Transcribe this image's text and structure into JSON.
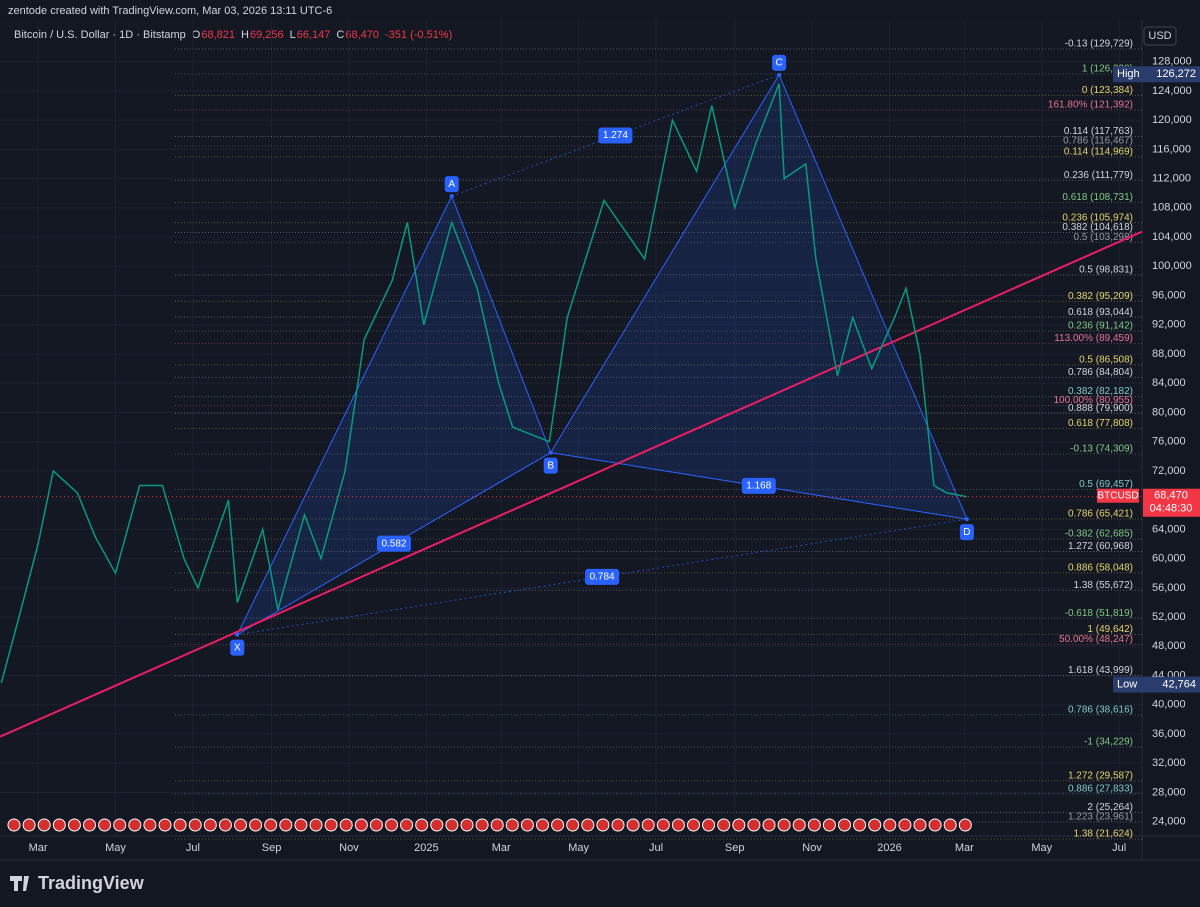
{
  "header": {
    "credit": "zentode created with TradingView.com, Mar 03, 2026 13:11 UTC-6",
    "symbol": "Bitcoin / U.S. Dollar · 1D · Bitstamp",
    "ohlc": [
      {
        "key": "O",
        "text": "68,821"
      },
      {
        "key": "H",
        "text": "69,256"
      },
      {
        "key": "L",
        "text": "66,147"
      },
      {
        "key": "C",
        "text": "68,470"
      }
    ],
    "change": "-351 (-0.51%)"
  },
  "chart_data": {
    "type": "line",
    "x": [
      "2024-02-01",
      "2024-02-15",
      "2024-03-01",
      "2024-03-13",
      "2024-04-01",
      "2024-04-15",
      "2024-05-01",
      "2024-05-20",
      "2024-06-07",
      "2024-06-24",
      "2024-07-05",
      "2024-07-29",
      "2024-08-05",
      "2024-08-25",
      "2024-09-06",
      "2024-09-27",
      "2024-10-10",
      "2024-10-29",
      "2024-11-13",
      "2024-12-05",
      "2024-12-17",
      "2024-12-30",
      "2025-01-21",
      "2025-02-10",
      "2025-02-27",
      "2025-03-10",
      "2025-04-08",
      "2025-04-22",
      "2025-05-21",
      "2025-06-22",
      "2025-07-14",
      "2025-08-02",
      "2025-08-14",
      "2025-09-01",
      "2025-09-18",
      "2025-10-06",
      "2025-10-10",
      "2025-10-27",
      "2025-11-04",
      "2025-11-21",
      "2025-12-03",
      "2025-12-18",
      "2026-01-05",
      "2026-01-14",
      "2026-01-25",
      "2026-02-05",
      "2026-02-15",
      "2026-03-03"
    ],
    "series": [
      {
        "name": "BTCUSD",
        "color": "#089981",
        "values": [
          43000,
          52000,
          62000,
          72000,
          69000,
          63000,
          58000,
          70000,
          70000,
          60000,
          56000,
          68000,
          54000,
          64000,
          53000,
          66000,
          60000,
          72000,
          90000,
          98000,
          106000,
          92000,
          106000,
          97000,
          84000,
          78000,
          76000,
          93000,
          109000,
          101000,
          120000,
          113000,
          122000,
          108000,
          117000,
          125000,
          112000,
          114000,
          101000,
          85000,
          93000,
          86000,
          93000,
          97000,
          88000,
          70000,
          69000,
          68470
        ]
      }
    ],
    "xlim": [
      "2024-01-31",
      "2026-07-19"
    ],
    "ylim": [
      21500,
      133700
    ],
    "xticks": [
      {
        "value": "2024-03-01",
        "label": "Mar"
      },
      {
        "value": "2024-05-01",
        "label": "May"
      },
      {
        "value": "2024-07-01",
        "label": "Jul"
      },
      {
        "value": "2024-09-01",
        "label": "Sep"
      },
      {
        "value": "2024-11-01",
        "label": "Nov"
      },
      {
        "value": "2025-01-01",
        "label": "2025"
      },
      {
        "value": "2025-03-01",
        "label": "Mar"
      },
      {
        "value": "2025-05-01",
        "label": "May"
      },
      {
        "value": "2025-07-01",
        "label": "Jul"
      },
      {
        "value": "2025-09-01",
        "label": "Sep"
      },
      {
        "value": "2025-11-01",
        "label": "Nov"
      },
      {
        "value": "2026-01-01",
        "label": "2026"
      },
      {
        "value": "2026-03-01",
        "label": "Mar"
      },
      {
        "value": "2026-05-01",
        "label": "May"
      },
      {
        "value": "2026-07-01",
        "label": "Jul"
      }
    ],
    "yticks": [
      {
        "value": 24000,
        "label": "24,000"
      },
      {
        "value": 28000,
        "label": "28,000"
      },
      {
        "value": 32000,
        "label": "32,000"
      },
      {
        "value": 36000,
        "label": "36,000"
      },
      {
        "value": 40000,
        "label": "40,000"
      },
      {
        "value": 44000,
        "label": "44,000"
      },
      {
        "value": 48000,
        "label": "48,000"
      },
      {
        "value": 52000,
        "label": "52,000"
      },
      {
        "value": 56000,
        "label": "56,000"
      },
      {
        "value": 60000,
        "label": "60,000"
      },
      {
        "value": 64000,
        "label": "64,000"
      },
      {
        "value": 68000,
        "label": "68,000"
      },
      {
        "value": 72000,
        "label": "72,000"
      },
      {
        "value": 76000,
        "label": "76,000"
      },
      {
        "value": 80000,
        "label": "80,000"
      },
      {
        "value": 84000,
        "label": "84,000"
      },
      {
        "value": 88000,
        "label": "88,000"
      },
      {
        "value": 92000,
        "label": "92,000"
      },
      {
        "value": 96000,
        "label": "96,000"
      },
      {
        "value": 100000,
        "label": "100,000"
      },
      {
        "value": 104000,
        "label": "104,000"
      },
      {
        "value": 108000,
        "label": "108,000"
      },
      {
        "value": 112000,
        "label": "112,000"
      },
      {
        "value": 116000,
        "label": "116,000"
      },
      {
        "value": 120000,
        "label": "120,000"
      },
      {
        "value": 124000,
        "label": "124,000"
      },
      {
        "value": 128000,
        "label": "128,000"
      }
    ],
    "grid": true,
    "currency": "USD",
    "high": {
      "label": "High",
      "value": 126272,
      "value_label": "126,272"
    },
    "low": {
      "label": "Low",
      "value": 42764,
      "value_label": "42,764"
    },
    "last": {
      "name": "BTCUSD",
      "value": 68470,
      "value_label": "68,470",
      "countdown": "04:48:30"
    },
    "trendline": {
      "x": [
        "2024-01-31",
        "2026-07-19"
      ],
      "values": [
        35630,
        104740
      ],
      "color": "#e91e63"
    },
    "pattern": {
      "color": "#2962ff",
      "points": [
        {
          "label": "X",
          "date": "2024-08-05",
          "price": 49600
        },
        {
          "label": "A",
          "date": "2025-01-21",
          "price": 109600
        },
        {
          "label": "B",
          "date": "2025-04-09",
          "price": 74500
        },
        {
          "label": "C",
          "date": "2025-10-06",
          "price": 126200
        },
        {
          "label": "D",
          "date": "2026-03-03",
          "price": 65400
        }
      ],
      "legs": [
        {
          "from": "X",
          "to": "B",
          "ratio": "0.582"
        },
        {
          "from": "A",
          "to": "C",
          "ratio": "1.274"
        },
        {
          "from": "B",
          "to": "D",
          "ratio": "1.168"
        },
        {
          "from": "X",
          "to": "D",
          "ratio": "0.784"
        }
      ]
    },
    "fib_levels": [
      {
        "label": "-0.13 (129,729)",
        "value": 129729,
        "color": "#d1d4dc"
      },
      {
        "label": "1 (126,320)",
        "value": 126320,
        "color": "#81c784"
      },
      {
        "label": "0 (123,384)",
        "value": 123384,
        "color": "#e6d36b"
      },
      {
        "label": "161.80% (121,392)",
        "value": 121392,
        "color": "#e57399"
      },
      {
        "label": "0.114 (117,763)",
        "value": 117763,
        "color": "#d1d4dc"
      },
      {
        "label": "0.786 (116,467)",
        "value": 116467,
        "color": "#9598a1"
      },
      {
        "label": "0.114 (114,969)",
        "value": 114969,
        "color": "#e6d36b"
      },
      {
        "label": "0.236 (111,779)",
        "value": 111779,
        "color": "#d1d4dc"
      },
      {
        "label": "0.618 (108,731)",
        "value": 108731,
        "color": "#81c784"
      },
      {
        "label": "0.236 (105,974)",
        "value": 105974,
        "color": "#e6d36b"
      },
      {
        "label": "0.382 (104,618)",
        "value": 104618,
        "color": "#d1d4dc"
      },
      {
        "label": "0.5 (103,298)",
        "value": 103298,
        "color": "#9598a1"
      },
      {
        "label": "0.5 (98,831)",
        "value": 98831,
        "color": "#d1d4dc"
      },
      {
        "label": "0.382 (95,209)",
        "value": 95209,
        "color": "#e6d36b"
      },
      {
        "label": "0.618 (93,044)",
        "value": 93044,
        "color": "#d1d4dc"
      },
      {
        "label": "0.236 (91,142)",
        "value": 91142,
        "color": "#81c784"
      },
      {
        "label": "113.00% (89,459)",
        "value": 89459,
        "color": "#e57399"
      },
      {
        "label": "0.5 (86,508)",
        "value": 86508,
        "color": "#e6d36b"
      },
      {
        "label": "0.786 (84,804)",
        "value": 84804,
        "color": "#d1d4dc"
      },
      {
        "label": "0.382 (82,182)",
        "value": 82182,
        "color": "#80cbc4"
      },
      {
        "label": "100.00% (80,955)",
        "value": 80955,
        "color": "#e57399"
      },
      {
        "label": "0.888 (79,900)",
        "value": 79900,
        "color": "#d1d4dc"
      },
      {
        "label": "0.618 (77,808)",
        "value": 77808,
        "color": "#e6d36b"
      },
      {
        "label": "-0.13 (74,309)",
        "value": 74309,
        "color": "#81c784"
      },
      {
        "label": "0.5 (69,457)",
        "value": 69457,
        "color": "#80cbc4"
      },
      {
        "label": "0.786 (65,421)",
        "value": 65421,
        "color": "#e6d36b"
      },
      {
        "label": "-0.382 (62,685)",
        "value": 62685,
        "color": "#81c784"
      },
      {
        "label": "1.272 (60,968)",
        "value": 60968,
        "color": "#d1d4dc"
      },
      {
        "label": "0.886 (58,048)",
        "value": 58048,
        "color": "#e6d36b"
      },
      {
        "label": "1.38 (55,672)",
        "value": 55672,
        "color": "#d1d4dc"
      },
      {
        "label": "-0.618 (51,819)",
        "value": 51819,
        "color": "#81c784"
      },
      {
        "label": "1 (49,642)",
        "value": 49642,
        "color": "#e6d36b"
      },
      {
        "label": "50.00% (48,247)",
        "value": 48247,
        "color": "#e57399"
      },
      {
        "label": "1.618 (43,999)",
        "value": 43999,
        "color": "#d1d4dc"
      },
      {
        "label": "0.786 (38,616)",
        "value": 38616,
        "color": "#80cbc4"
      },
      {
        "label": "-1 (34,229)",
        "value": 34229,
        "color": "#81c784"
      },
      {
        "label": "1.272 (29,587)",
        "value": 29587,
        "color": "#e6d36b"
      },
      {
        "label": "0.886 (27,833)",
        "value": 27833,
        "color": "#80cbc4"
      },
      {
        "label": "2 (25,264)",
        "value": 25264,
        "color": "#d1d4dc"
      },
      {
        "label": "1.223 (23,961)",
        "value": 23961,
        "color": "#9598a1"
      },
      {
        "label": "1.38 (21,624)",
        "value": 21624,
        "color": "#e6d36b"
      }
    ]
  },
  "footer": {
    "logo": "TradingView"
  }
}
